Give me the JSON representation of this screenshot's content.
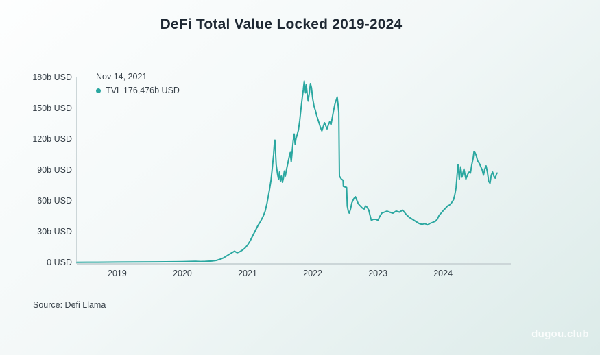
{
  "title": "DeFi Total Value Locked 2019-2024",
  "tooltip": {
    "date": "Nov 14, 2021",
    "series_label": "TVL 176,476b USD"
  },
  "source": "Source: Defi Llama",
  "watermark": "dugou.club",
  "colors": {
    "line": "#2aa7a0",
    "axis": "#ccd6d8",
    "text": "#39424a",
    "title": "#1e2833"
  },
  "chart_data": {
    "type": "line",
    "title": "DeFi Total Value Locked 2019-2024",
    "xlabel": "",
    "ylabel": "",
    "unit": "billions USD",
    "grid": false,
    "legend_position": "top-left",
    "xlim": [
      2018.38,
      2025.04
    ],
    "ylim": [
      0,
      180
    ],
    "x_ticks": [
      2019,
      2020,
      2021,
      2022,
      2023,
      2024
    ],
    "x_tick_labels": [
      "2019",
      "2020",
      "2021",
      "2022",
      "2023",
      "2024"
    ],
    "y_ticks": [
      0,
      30,
      60,
      90,
      120,
      150,
      180
    ],
    "y_tick_labels": [
      "0 USD",
      "30b USD",
      "60b USD",
      "90b USD",
      "120b USD",
      "150b USD",
      "180b USD"
    ],
    "highlighted_point": {
      "date": "Nov 14, 2021",
      "t": 2021.87,
      "value": 176.476
    },
    "series": [
      {
        "name": "TVL",
        "color": "#2aa7a0",
        "points": [
          [
            2018.38,
            0.2
          ],
          [
            2018.7,
            0.3
          ],
          [
            2019.0,
            0.4
          ],
          [
            2019.3,
            0.5
          ],
          [
            2019.6,
            0.6
          ],
          [
            2019.9,
            0.7
          ],
          [
            2020.0,
            0.8
          ],
          [
            2020.1,
            1.0
          ],
          [
            2020.2,
            1.2
          ],
          [
            2020.28,
            0.9
          ],
          [
            2020.35,
            1.1
          ],
          [
            2020.45,
            1.4
          ],
          [
            2020.52,
            2.0
          ],
          [
            2020.58,
            3.2
          ],
          [
            2020.63,
            4.5
          ],
          [
            2020.68,
            6.5
          ],
          [
            2020.72,
            8.0
          ],
          [
            2020.76,
            9.5
          ],
          [
            2020.8,
            11.0
          ],
          [
            2020.84,
            9.5
          ],
          [
            2020.88,
            10.5
          ],
          [
            2020.92,
            12.0
          ],
          [
            2020.96,
            14.0
          ],
          [
            2021.0,
            17
          ],
          [
            2021.04,
            21
          ],
          [
            2021.08,
            26
          ],
          [
            2021.12,
            31
          ],
          [
            2021.16,
            36
          ],
          [
            2021.2,
            40
          ],
          [
            2021.24,
            45
          ],
          [
            2021.27,
            50
          ],
          [
            2021.3,
            58
          ],
          [
            2021.32,
            65
          ],
          [
            2021.34,
            72
          ],
          [
            2021.36,
            80
          ],
          [
            2021.38,
            92
          ],
          [
            2021.4,
            105
          ],
          [
            2021.41,
            115
          ],
          [
            2021.42,
            119
          ],
          [
            2021.43,
            106
          ],
          [
            2021.44,
            95
          ],
          [
            2021.46,
            86
          ],
          [
            2021.475,
            81
          ],
          [
            2021.49,
            88
          ],
          [
            2021.505,
            79
          ],
          [
            2021.52,
            84
          ],
          [
            2021.535,
            78
          ],
          [
            2021.55,
            82
          ],
          [
            2021.565,
            89
          ],
          [
            2021.58,
            84
          ],
          [
            2021.6,
            91
          ],
          [
            2021.62,
            97
          ],
          [
            2021.64,
            103
          ],
          [
            2021.655,
            107
          ],
          [
            2021.67,
            98
          ],
          [
            2021.685,
            108
          ],
          [
            2021.7,
            118
          ],
          [
            2021.715,
            125
          ],
          [
            2021.73,
            115
          ],
          [
            2021.745,
            121
          ],
          [
            2021.76,
            124
          ],
          [
            2021.78,
            129
          ],
          [
            2021.8,
            138
          ],
          [
            2021.82,
            150
          ],
          [
            2021.84,
            161
          ],
          [
            2021.855,
            168
          ],
          [
            2021.87,
            176.5
          ],
          [
            2021.88,
            169
          ],
          [
            2021.89,
            165
          ],
          [
            2021.9,
            173
          ],
          [
            2021.915,
            164
          ],
          [
            2021.93,
            157
          ],
          [
            2021.95,
            166
          ],
          [
            2021.965,
            174
          ],
          [
            2021.98,
            170
          ],
          [
            2022.0,
            159
          ],
          [
            2022.02,
            152
          ],
          [
            2022.04,
            148
          ],
          [
            2022.06,
            143
          ],
          [
            2022.08,
            139
          ],
          [
            2022.1,
            135
          ],
          [
            2022.12,
            131
          ],
          [
            2022.14,
            128
          ],
          [
            2022.16,
            132
          ],
          [
            2022.18,
            136
          ],
          [
            2022.2,
            133
          ],
          [
            2022.22,
            130
          ],
          [
            2022.24,
            134
          ],
          [
            2022.26,
            137
          ],
          [
            2022.28,
            134
          ],
          [
            2022.3,
            141
          ],
          [
            2022.32,
            148
          ],
          [
            2022.34,
            154
          ],
          [
            2022.36,
            158
          ],
          [
            2022.375,
            161
          ],
          [
            2022.39,
            153
          ],
          [
            2022.4,
            146
          ],
          [
            2022.405,
            110
          ],
          [
            2022.41,
            84
          ],
          [
            2022.44,
            81
          ],
          [
            2022.465,
            80
          ],
          [
            2022.47,
            74
          ],
          [
            2022.52,
            73
          ],
          [
            2022.53,
            55
          ],
          [
            2022.545,
            50
          ],
          [
            2022.56,
            48
          ],
          [
            2022.58,
            52
          ],
          [
            2022.6,
            58
          ],
          [
            2022.63,
            62
          ],
          [
            2022.655,
            64
          ],
          [
            2022.68,
            60
          ],
          [
            2022.7,
            57
          ],
          [
            2022.73,
            55
          ],
          [
            2022.76,
            53
          ],
          [
            2022.79,
            52
          ],
          [
            2022.81,
            55
          ],
          [
            2022.83,
            54
          ],
          [
            2022.86,
            51
          ],
          [
            2022.875,
            47
          ],
          [
            2022.89,
            43
          ],
          [
            2022.9,
            41
          ],
          [
            2022.93,
            42
          ],
          [
            2022.97,
            42
          ],
          [
            2023.0,
            41
          ],
          [
            2023.03,
            45
          ],
          [
            2023.06,
            48
          ],
          [
            2023.1,
            49
          ],
          [
            2023.14,
            50
          ],
          [
            2023.18,
            49
          ],
          [
            2023.23,
            48
          ],
          [
            2023.28,
            50
          ],
          [
            2023.33,
            49
          ],
          [
            2023.38,
            51
          ],
          [
            2023.43,
            47
          ],
          [
            2023.48,
            44
          ],
          [
            2023.53,
            42
          ],
          [
            2023.58,
            40
          ],
          [
            2023.63,
            38
          ],
          [
            2023.68,
            37
          ],
          [
            2023.72,
            38
          ],
          [
            2023.76,
            36.5
          ],
          [
            2023.8,
            38
          ],
          [
            2023.84,
            39
          ],
          [
            2023.88,
            40
          ],
          [
            2023.91,
            42
          ],
          [
            2023.94,
            46
          ],
          [
            2023.97,
            48
          ],
          [
            2024.01,
            51
          ],
          [
            2024.04,
            53
          ],
          [
            2024.07,
            55
          ],
          [
            2024.1,
            56
          ],
          [
            2024.13,
            58
          ],
          [
            2024.16,
            61
          ],
          [
            2024.18,
            66
          ],
          [
            2024.2,
            73
          ],
          [
            2024.215,
            85
          ],
          [
            2024.23,
            95
          ],
          [
            2024.25,
            81
          ],
          [
            2024.27,
            93
          ],
          [
            2024.29,
            83
          ],
          [
            2024.32,
            91
          ],
          [
            2024.35,
            81
          ],
          [
            2024.38,
            86
          ],
          [
            2024.4,
            88
          ],
          [
            2024.42,
            87
          ],
          [
            2024.44,
            95
          ],
          [
            2024.46,
            101
          ],
          [
            2024.475,
            108
          ],
          [
            2024.49,
            107
          ],
          [
            2024.51,
            104
          ],
          [
            2024.53,
            99
          ],
          [
            2024.56,
            96
          ],
          [
            2024.58,
            93
          ],
          [
            2024.6,
            90
          ],
          [
            2024.62,
            85
          ],
          [
            2024.64,
            91
          ],
          [
            2024.66,
            94
          ],
          [
            2024.68,
            88
          ],
          [
            2024.7,
            79
          ],
          [
            2024.72,
            77
          ],
          [
            2024.74,
            85
          ],
          [
            2024.76,
            88
          ],
          [
            2024.78,
            84
          ],
          [
            2024.8,
            82
          ],
          [
            2024.82,
            86
          ],
          [
            2024.83,
            87
          ]
        ]
      }
    ]
  }
}
